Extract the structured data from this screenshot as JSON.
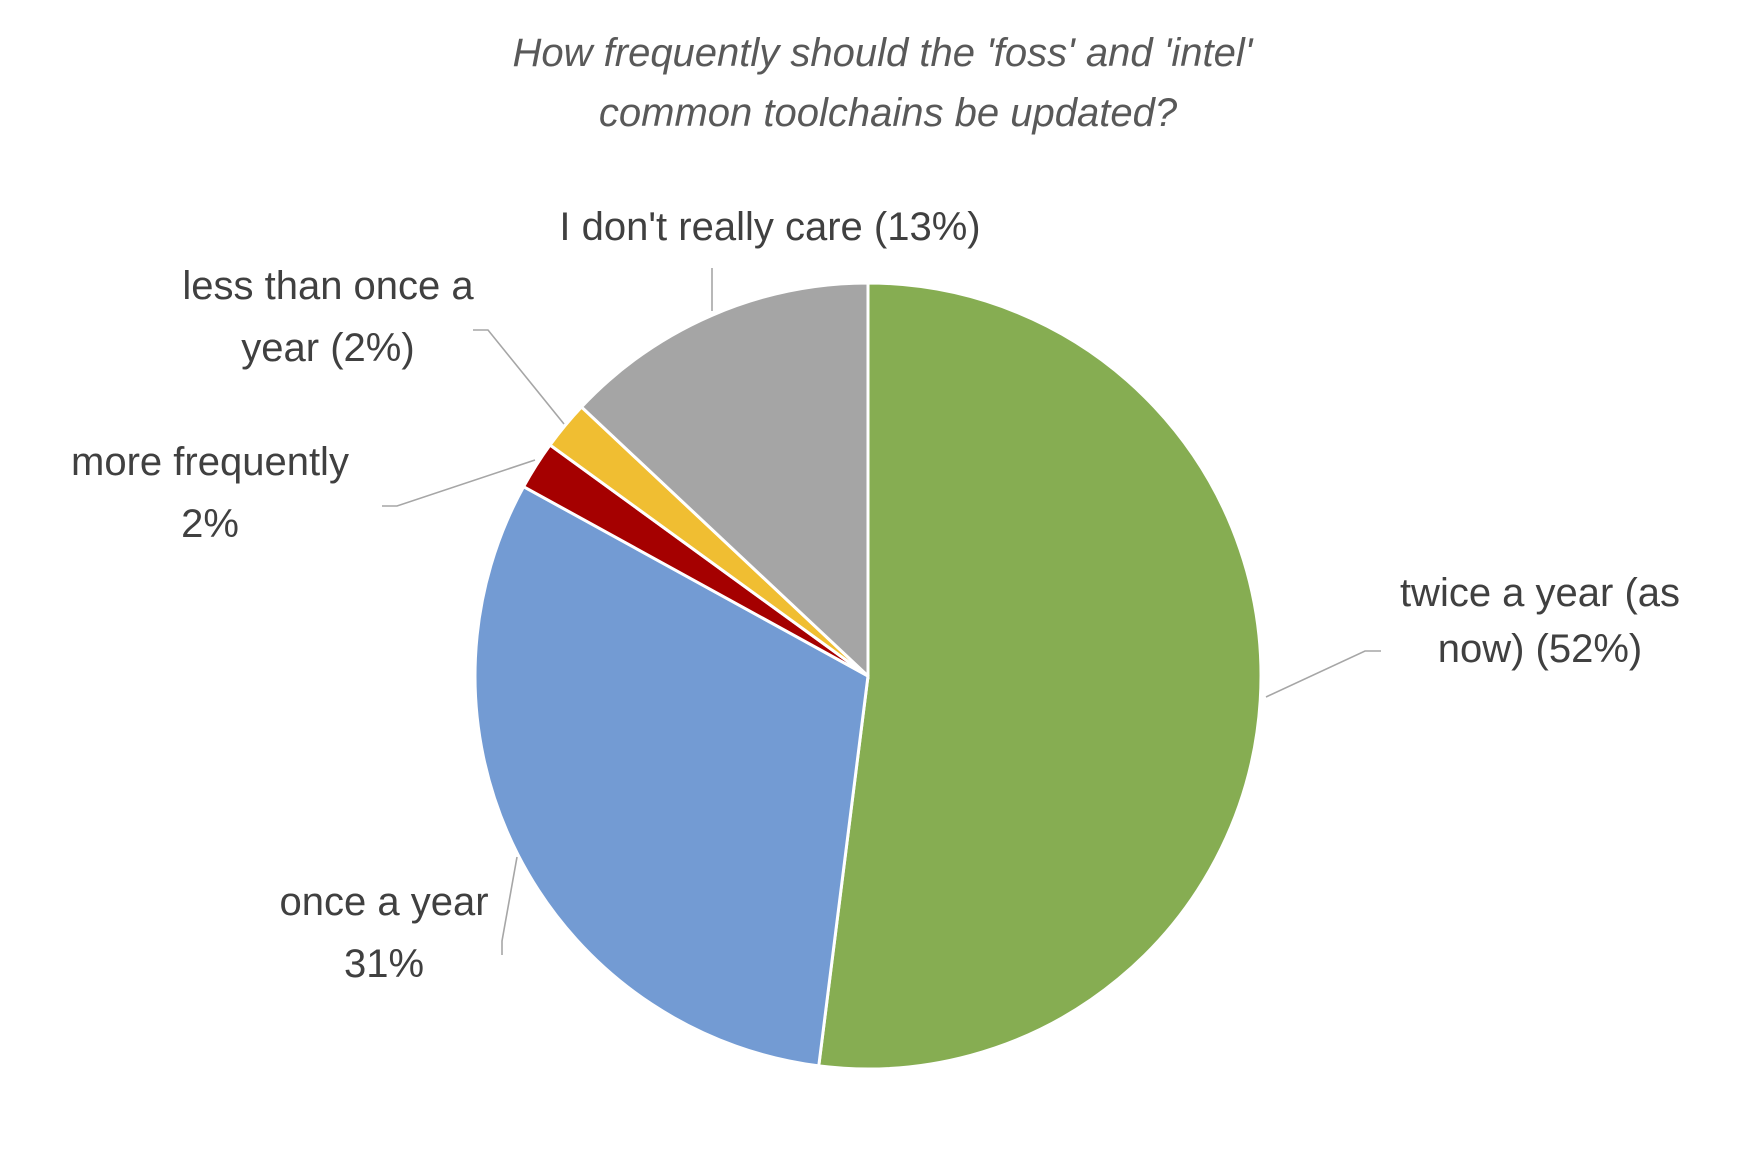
{
  "chart_data": {
    "type": "pie",
    "title": "How frequently should the 'foss' and 'intel' common toolchains be updated?",
    "title_lines": [
      "How frequently should the 'foss' and 'intel'",
      "common toolchains be updated?"
    ],
    "slices": [
      {
        "label": "twice a year (as now) (52%)",
        "label_lines": [
          "twice a year (as",
          "now) (52%)"
        ],
        "value": 52,
        "color": "#86ad52"
      },
      {
        "label": "once a year 31%",
        "label_lines": [
          "once a year",
          "31%"
        ],
        "value": 31,
        "color": "#739bd3"
      },
      {
        "label": "more frequently 2%",
        "label_lines": [
          "more frequently",
          "2%"
        ],
        "value": 2,
        "color": "#a50000"
      },
      {
        "label": "less than once a year (2%)",
        "label_lines": [
          "less than once a",
          "year (2%)"
        ],
        "value": 2,
        "color": "#f0be32"
      },
      {
        "label": "I don't really care (13%)",
        "label_lines": [
          "I don't really care (13%)"
        ],
        "value": 13,
        "color": "#a5a5a5"
      }
    ],
    "start_angle_deg": 0,
    "direction": "clockwise",
    "legend": "none"
  }
}
